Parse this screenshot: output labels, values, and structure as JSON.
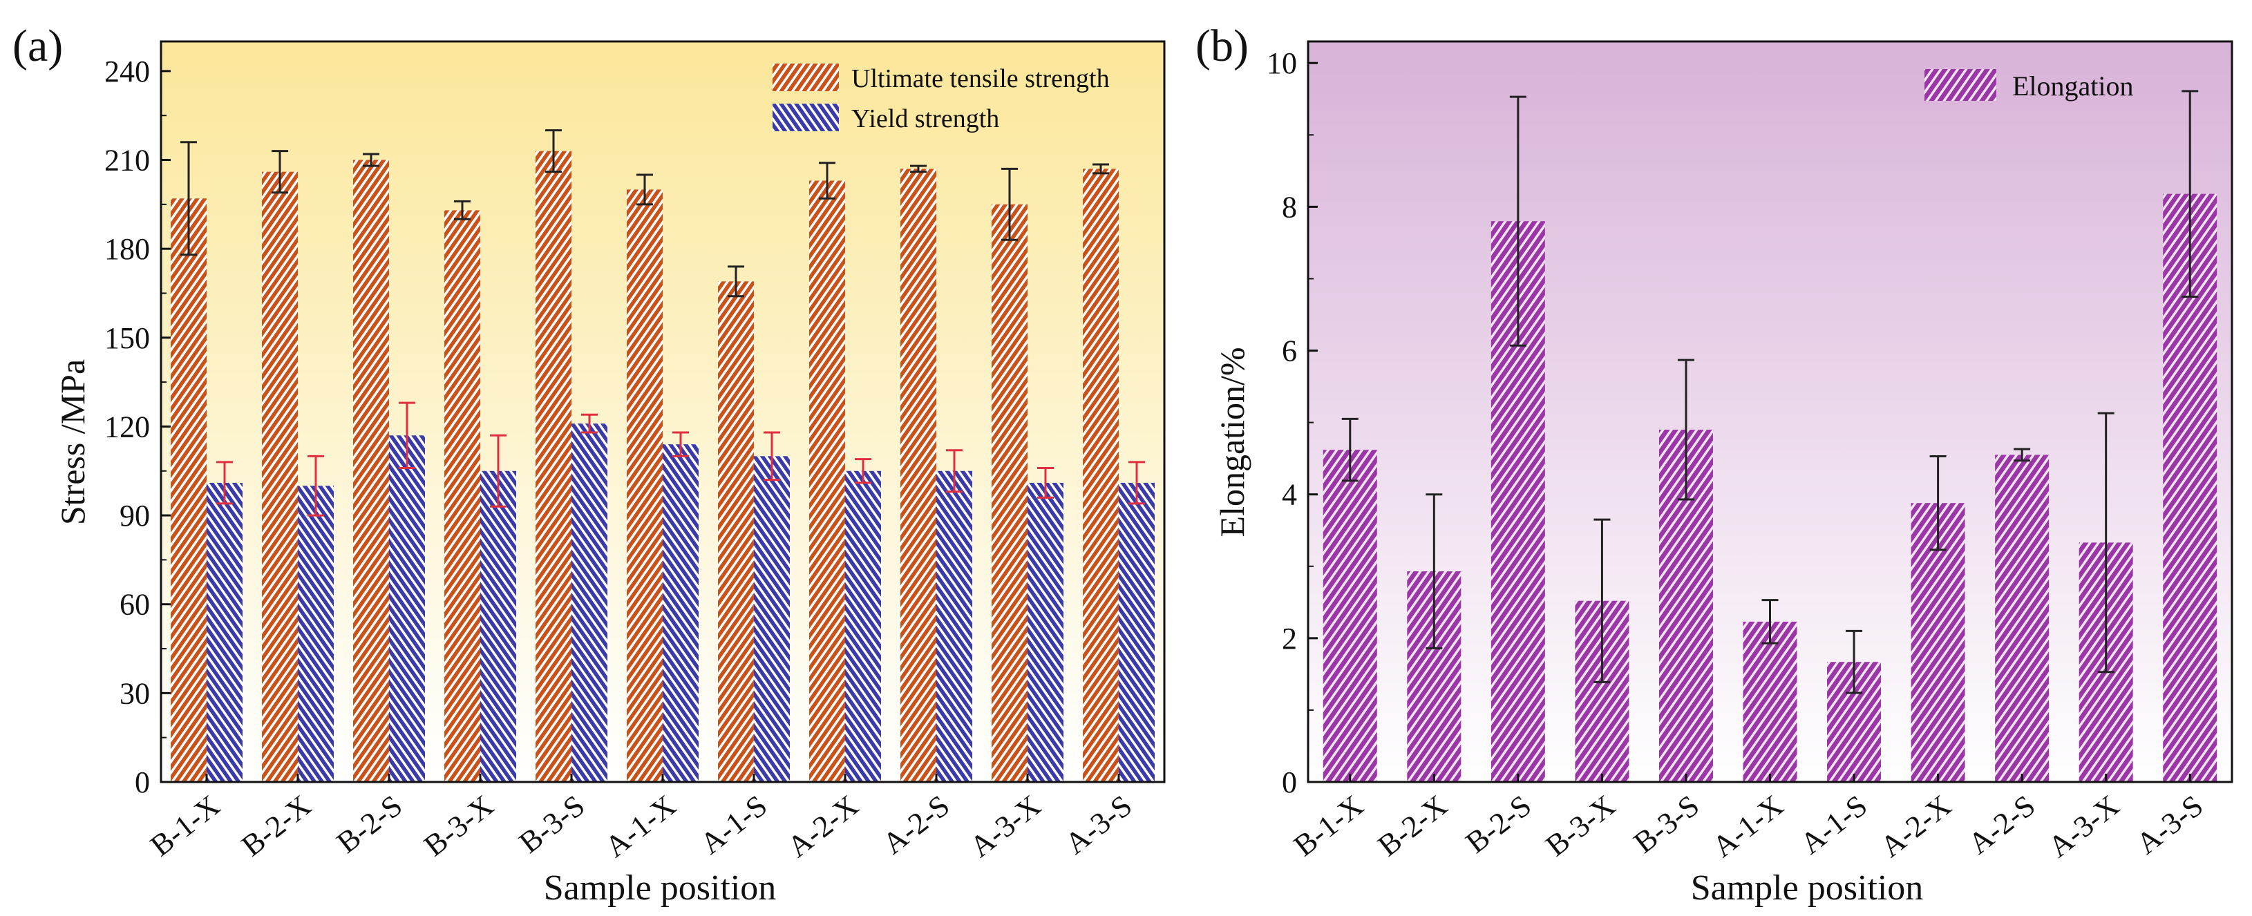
{
  "colors": {
    "uts_bar": "#c8521a",
    "ys_bar": "#3a3aa8",
    "elong_bar": "#9a36a6",
    "uts_err": "#222222",
    "ys_err": "#e03040",
    "elong_err": "#222222",
    "bg_a_top": "#fbe79a",
    "bg_a_bottom": "#ffffff",
    "bg_b_top": "#d8b2d8",
    "bg_b_bottom": "#ffffff"
  },
  "chart_data": [
    {
      "panel_label": "(a)",
      "type": "bar",
      "xlabel": "Sample position",
      "ylabel": "Stress /MPa",
      "ylim": [
        0,
        250
      ],
      "yticks": [
        "0",
        "30",
        "60",
        "90",
        "120",
        "150",
        "180",
        "210",
        "240"
      ],
      "categories": [
        "B-1-X",
        "B-2-X",
        "B-2-S",
        "B-3-X",
        "B-3-S",
        "A-1-X",
        "A-1-S",
        "A-2-X",
        "A-2-S",
        "A-3-X",
        "A-3-S"
      ],
      "legend_position": "top-right",
      "background": "gradient yellow to white",
      "series": [
        {
          "name": "Ultimate tensile strength",
          "values": [
            197,
            206,
            210,
            193,
            213,
            200,
            169,
            203,
            207,
            195,
            207
          ],
          "errors": [
            19,
            7,
            2,
            3,
            7,
            5,
            5,
            6,
            1,
            12,
            1.5
          ]
        },
        {
          "name": "Yield strength",
          "values": [
            101,
            100,
            117,
            105,
            121,
            114,
            110,
            105,
            105,
            101,
            101
          ],
          "errors": [
            7,
            10,
            11,
            12,
            3,
            4,
            8,
            4,
            7,
            5,
            7
          ]
        }
      ]
    },
    {
      "panel_label": "(b)",
      "type": "bar",
      "xlabel": "Sample position",
      "ylabel": "Elongation/%",
      "ylim": [
        0,
        10.3
      ],
      "yticks": [
        "0",
        "2",
        "4",
        "6",
        "8",
        "10"
      ],
      "categories": [
        "B-1-X",
        "B-2-X",
        "B-2-S",
        "B-3-X",
        "B-3-S",
        "A-1-X",
        "A-1-S",
        "A-2-X",
        "A-2-S",
        "A-3-X",
        "A-3-S"
      ],
      "legend_position": "top-right",
      "background": "gradient purple to white",
      "series": [
        {
          "name": "Elongation",
          "values": [
            4.62,
            2.93,
            7.8,
            2.52,
            4.9,
            2.23,
            1.67,
            3.88,
            4.55,
            3.33,
            8.18
          ],
          "errors": [
            0.43,
            1.07,
            1.73,
            1.13,
            0.97,
            0.3,
            0.43,
            0.65,
            0.08,
            1.8,
            1.43
          ]
        }
      ]
    }
  ]
}
